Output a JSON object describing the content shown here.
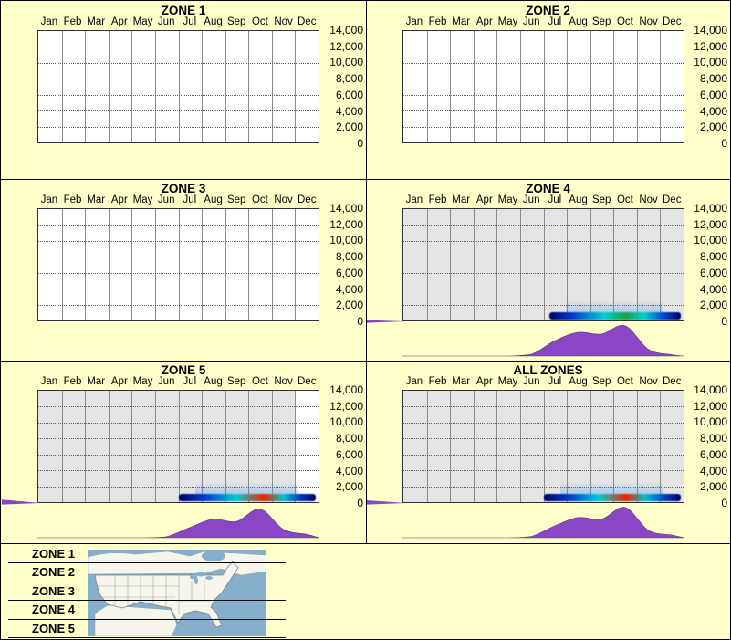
{
  "colors": {
    "bg": "#FFFFC9",
    "hill": "#8A46C4",
    "hill-stroke": "#5E2E90",
    "plot-grey": "#E4E4E4",
    "map-water": "#86AECD",
    "map-land": "#F5F5EC",
    "map-border": "#9A9A9A"
  },
  "y_axis": {
    "tick_labels": [
      "14,000",
      "12,000",
      "10,000",
      "8,000",
      "6,000",
      "4,000",
      "2,000",
      "0"
    ],
    "min": 0,
    "max": 14000,
    "step": 2000
  },
  "legend": {
    "items": [
      "ZONE 1",
      "ZONE 2",
      "ZONE 3",
      "ZONE 4",
      "ZONE 5"
    ]
  },
  "chart_data": {
    "type": "area",
    "layout": "six monthly bloom-period panels with shared axes",
    "categories": [
      "Jan",
      "Feb",
      "Mar",
      "Apr",
      "May",
      "Jun",
      "Jul",
      "Aug",
      "Sep",
      "Oct",
      "Nov",
      "Dec"
    ],
    "ylim": [
      0,
      14000
    ],
    "yticks": [
      0,
      2000,
      4000,
      6000,
      8000,
      10000,
      12000,
      14000
    ],
    "values_unit": "relative bloom-observation density (0-10, estimated from purple curve)",
    "panels": [
      {
        "title": "ZONE 1",
        "has_data": false,
        "plot_background": "#FFFFFF",
        "values": [
          0,
          0,
          0,
          0,
          0,
          0,
          0,
          0,
          0,
          0,
          0,
          0
        ],
        "left_tail": 0
      },
      {
        "title": "ZONE 2",
        "has_data": false,
        "plot_background": "#FFFFFF",
        "values": [
          0,
          0,
          0,
          0,
          0,
          0,
          0,
          0,
          0,
          0,
          0,
          0
        ],
        "left_tail": 0
      },
      {
        "title": "ZONE 3",
        "has_data": false,
        "plot_background": "#FFFFFF",
        "values": [
          0,
          0,
          0,
          0,
          0,
          0,
          0,
          0,
          0,
          0,
          0,
          0
        ],
        "left_tail": 0
      },
      {
        "title": "ZONE 4",
        "has_data": true,
        "plot_background": "#E4E4E4",
        "values": [
          0,
          0,
          0,
          0,
          0,
          0.5,
          4.5,
          7,
          6.5,
          9,
          2,
          0.4
        ],
        "left_tail": 0.6,
        "heat_band": {
          "extent_frac": [
            0.52,
            0.99
          ],
          "stops": [
            {
              "color": "#000066",
              "pos": 0
            },
            {
              "color": "#0040D0",
              "pos": 18
            },
            {
              "color": "#00CFCF",
              "pos": 42
            },
            {
              "color": "#18A050",
              "pos": 58
            },
            {
              "color": "#00CFCF",
              "pos": 72
            },
            {
              "color": "#0040D0",
              "pos": 88
            },
            {
              "color": "#000066",
              "pos": 100
            }
          ]
        }
      },
      {
        "title": "ZONE 5",
        "has_data": true,
        "plot_background": "#E4E4E4",
        "values": [
          0,
          0,
          0,
          0,
          0,
          0.3,
          3,
          5.5,
          4.8,
          8.5,
          2.5,
          1
        ],
        "left_tail": 1.2,
        "white_columns": [
          11
        ],
        "heat_band": {
          "extent_frac": [
            0.5,
            0.99
          ],
          "stops": [
            {
              "color": "#000066",
              "pos": 0
            },
            {
              "color": "#0044D0",
              "pos": 20
            },
            {
              "color": "#00CFCF",
              "pos": 42
            },
            {
              "color": "#EE2200",
              "pos": 62
            },
            {
              "color": "#00BFCF",
              "pos": 76
            },
            {
              "color": "#0040C0",
              "pos": 88
            },
            {
              "color": "#000066",
              "pos": 100
            }
          ]
        }
      },
      {
        "title": "ALL ZONES",
        "has_data": true,
        "plot_background": "#E4E4E4",
        "values": [
          0,
          0,
          0,
          0,
          0,
          0.4,
          3.5,
          6,
          5.5,
          9,
          2.2,
          0.8
        ],
        "left_tail": 1.0,
        "heat_band": {
          "extent_frac": [
            0.5,
            0.99
          ],
          "stops": [
            {
              "color": "#000066",
              "pos": 0
            },
            {
              "color": "#0044D0",
              "pos": 20
            },
            {
              "color": "#00CFCF",
              "pos": 40
            },
            {
              "color": "#EE2200",
              "pos": 60
            },
            {
              "color": "#00BFCF",
              "pos": 74
            },
            {
              "color": "#0040C0",
              "pos": 88
            },
            {
              "color": "#000066",
              "pos": 100
            }
          ]
        }
      }
    ]
  },
  "map": {
    "label": "US zones map"
  }
}
